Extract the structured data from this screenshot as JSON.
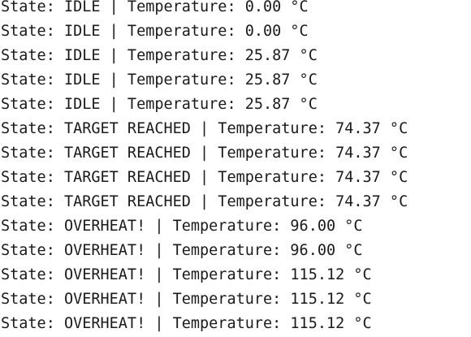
{
  "console": {
    "lines": [
      "State: IDLE | Temperature: 0.00 °C",
      "State: IDLE | Temperature: 0.00 °C",
      "State: IDLE | Temperature: 25.87 °C",
      "State: IDLE | Temperature: 25.87 °C",
      "State: IDLE | Temperature: 25.87 °C",
      "State: TARGET REACHED | Temperature: 74.37 °C",
      "State: TARGET REACHED | Temperature: 74.37 °C",
      "State: TARGET REACHED | Temperature: 74.37 °C",
      "State: TARGET REACHED | Temperature: 74.37 °C",
      "State: OVERHEAT! | Temperature: 96.00 °C",
      "State: OVERHEAT! | Temperature: 96.00 °C",
      "State: OVERHEAT! | Temperature: 115.12 °C",
      "State: OVERHEAT! | Temperature: 115.12 °C",
      "State: OVERHEAT! | Temperature: 115.12 °C"
    ]
  }
}
